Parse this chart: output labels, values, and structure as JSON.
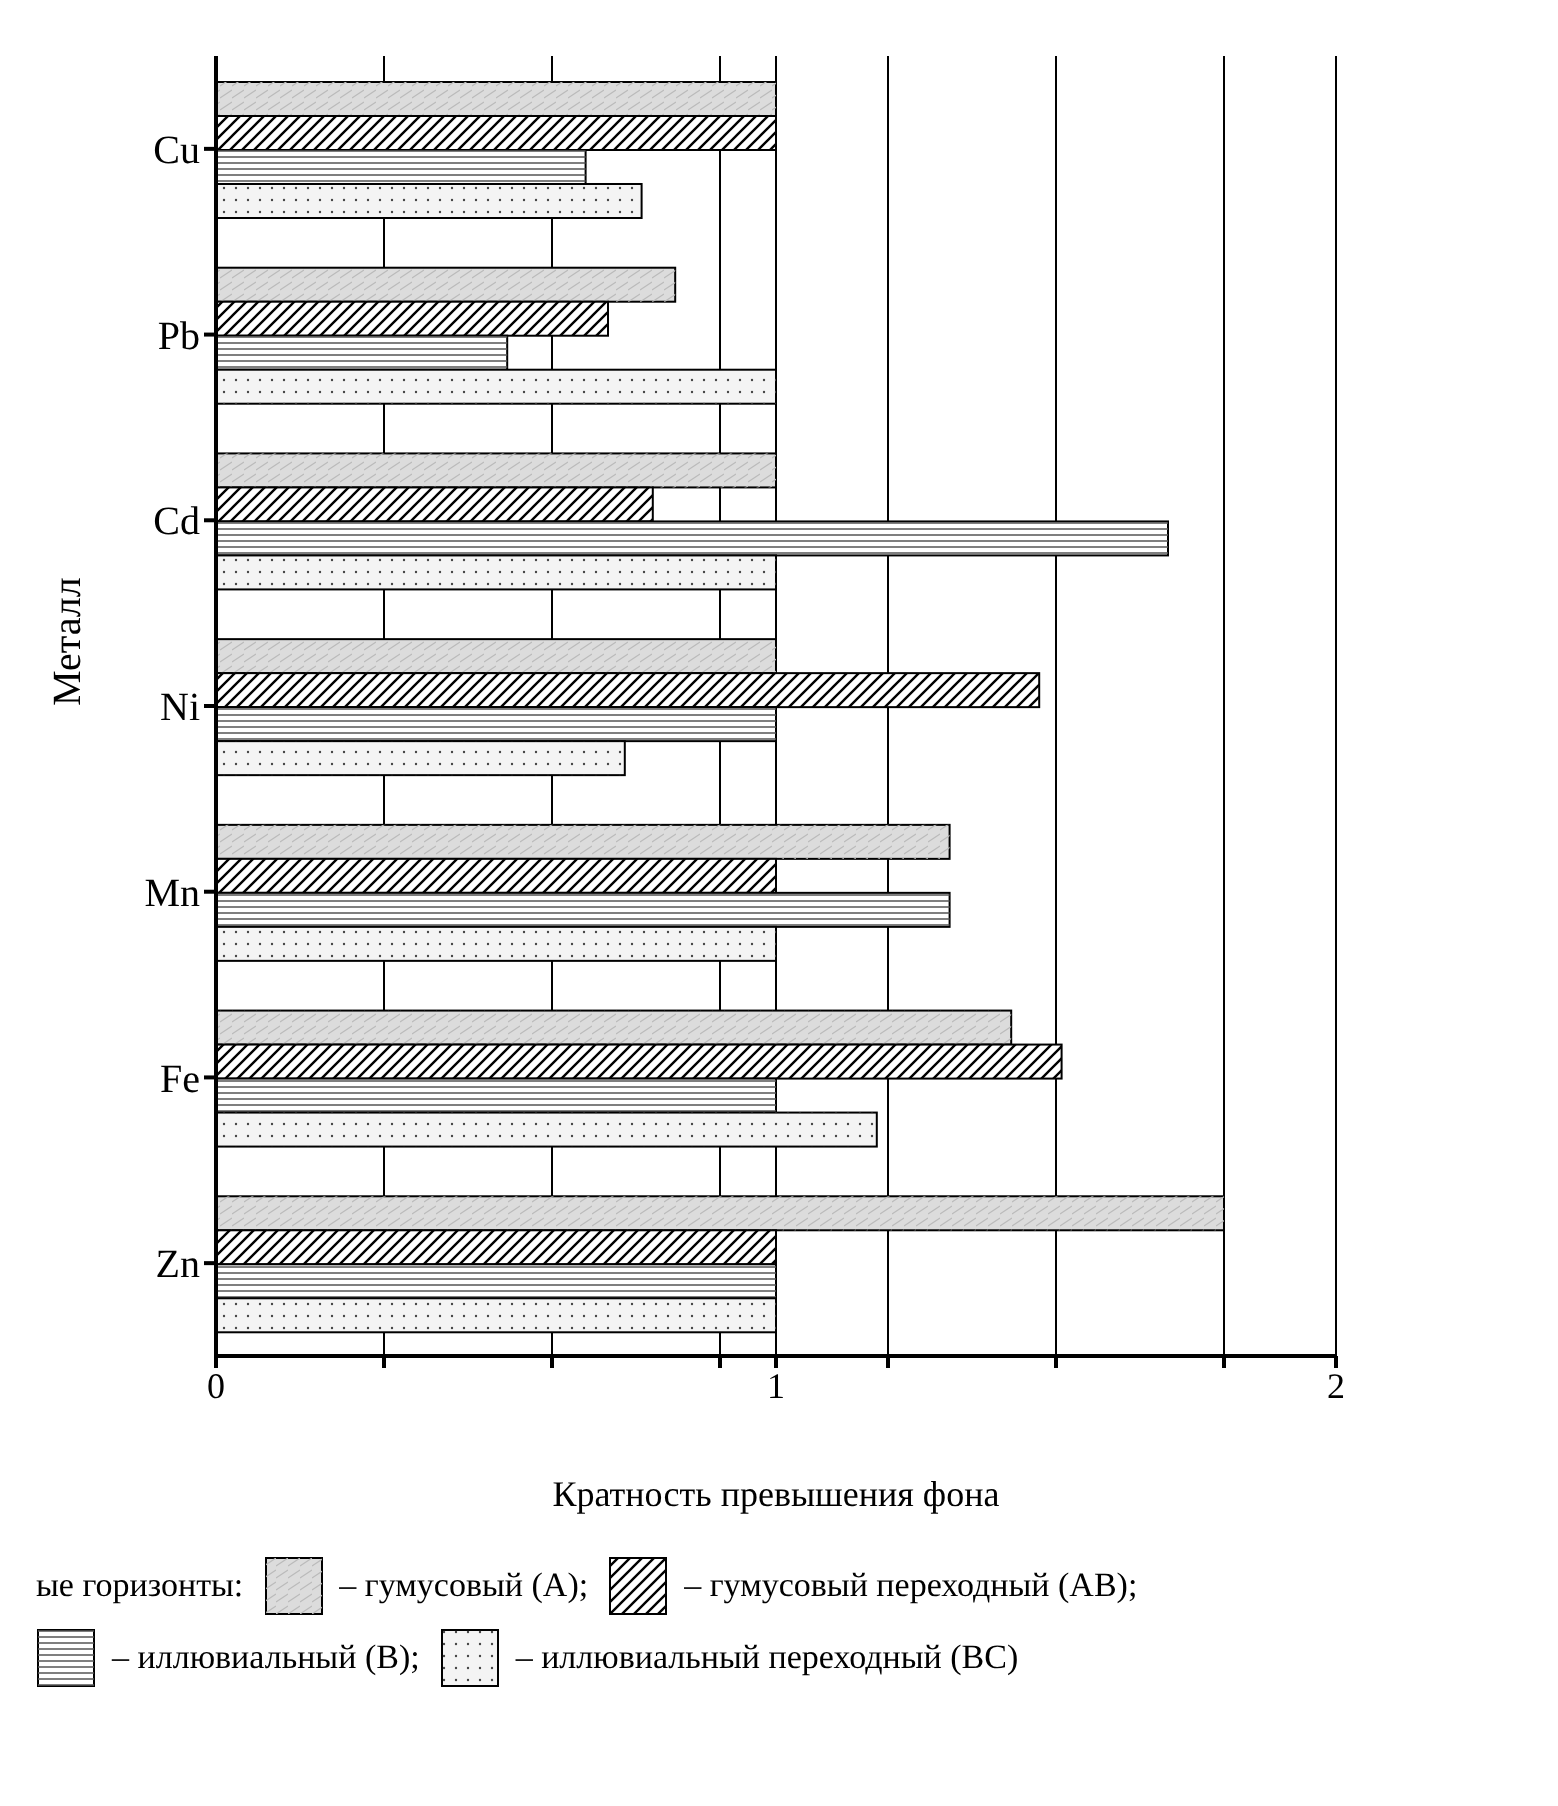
{
  "chart_data": {
    "type": "bar",
    "orientation": "horizontal",
    "xlabel": "Кратность превышения фона",
    "ylabel": "Металл",
    "legend_title": "ые горизонты:",
    "categories": [
      "Cu",
      "Pb",
      "Cd",
      "Ni",
      "Mn",
      "Fe",
      "Zn"
    ],
    "series": [
      {
        "name": "– гумусовый (A);",
        "color": "#dcdcdc",
        "values": [
          1.0,
          0.82,
          1.0,
          1.0,
          1.31,
          1.42,
          1.8
        ]
      },
      {
        "name": "– гумусовый переходный (AB);",
        "color": "#ffffff",
        "values": [
          1.0,
          0.7,
          0.78,
          1.47,
          1.0,
          1.51,
          1.0
        ]
      },
      {
        "name": "– иллювиальный (B);",
        "color": "#ffffff",
        "values": [
          0.66,
          0.52,
          1.7,
          1.0,
          1.31,
          1.0,
          1.0
        ]
      },
      {
        "name": "– иллювиальный переходный (BC)",
        "color": "#f4f4f4",
        "values": [
          0.76,
          1.0,
          1.0,
          0.73,
          1.0,
          1.18,
          1.0
        ]
      }
    ],
    "xlim": [
      0,
      2
    ],
    "xticks": [
      0,
      {
        "value": 0.3,
        "label": null
      },
      {
        "value": 0.6,
        "label": null
      },
      {
        "value": 0.9,
        "label": null
      },
      1,
      {
        "value": 1.2,
        "label": null
      },
      {
        "value": 1.5,
        "label": null
      },
      {
        "value": 1.8,
        "label": null
      },
      2
    ],
    "grid": "x",
    "legend": "bottom"
  }
}
